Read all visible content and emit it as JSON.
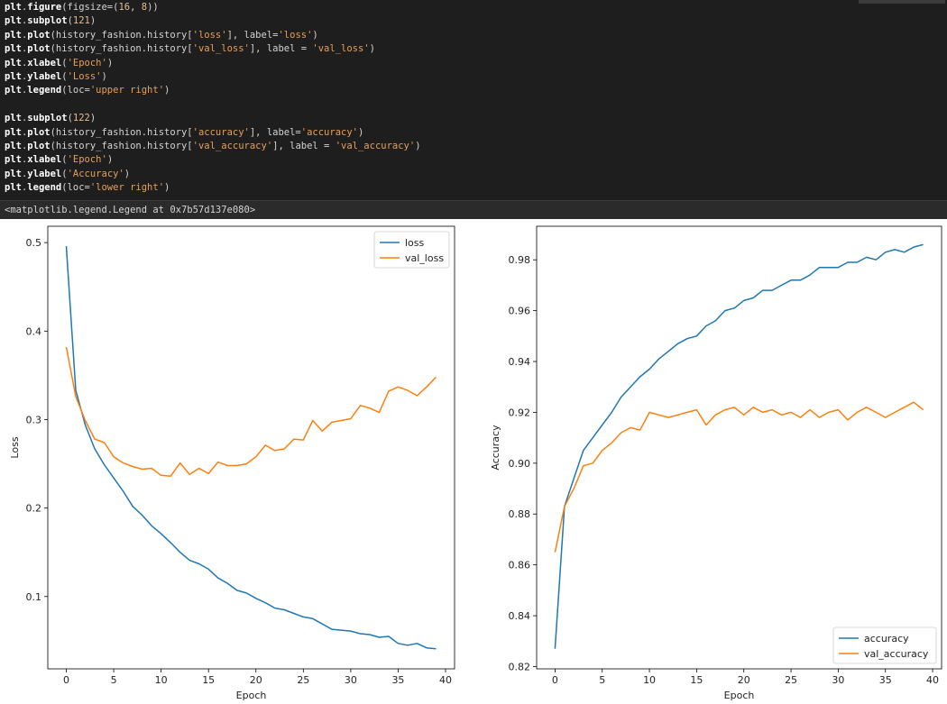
{
  "code_cell": {
    "lines": [
      [
        [
          "n",
          "plt"
        ],
        [
          "p",
          "."
        ],
        [
          "n",
          "figure"
        ],
        [
          "p",
          "(figsize=("
        ],
        [
          "num",
          "16"
        ],
        [
          "p",
          ", "
        ],
        [
          "num",
          "8"
        ],
        [
          "p",
          "))"
        ]
      ],
      [
        [
          "n",
          "plt"
        ],
        [
          "p",
          "."
        ],
        [
          "n",
          "subplot"
        ],
        [
          "p",
          "("
        ],
        [
          "num",
          "121"
        ],
        [
          "p",
          ")"
        ]
      ],
      [
        [
          "n",
          "plt"
        ],
        [
          "p",
          "."
        ],
        [
          "n",
          "plot"
        ],
        [
          "p",
          "(history_fashion.history["
        ],
        [
          "s",
          "'loss'"
        ],
        [
          "p",
          "], label="
        ],
        [
          "s",
          "'loss'"
        ],
        [
          "p",
          ")"
        ]
      ],
      [
        [
          "n",
          "plt"
        ],
        [
          "p",
          "."
        ],
        [
          "n",
          "plot"
        ],
        [
          "p",
          "(history_fashion.history["
        ],
        [
          "s",
          "'val_loss'"
        ],
        [
          "p",
          "], label = "
        ],
        [
          "s",
          "'val_loss'"
        ],
        [
          "p",
          ")"
        ]
      ],
      [
        [
          "n",
          "plt"
        ],
        [
          "p",
          "."
        ],
        [
          "n",
          "xlabel"
        ],
        [
          "p",
          "("
        ],
        [
          "s",
          "'Epoch'"
        ],
        [
          "p",
          ")"
        ]
      ],
      [
        [
          "n",
          "plt"
        ],
        [
          "p",
          "."
        ],
        [
          "n",
          "ylabel"
        ],
        [
          "p",
          "("
        ],
        [
          "s",
          "'Loss'"
        ],
        [
          "p",
          ")"
        ]
      ],
      [
        [
          "n",
          "plt"
        ],
        [
          "p",
          "."
        ],
        [
          "n",
          "legend"
        ],
        [
          "p",
          "(loc="
        ],
        [
          "s",
          "'upper right'"
        ],
        [
          "p",
          ")"
        ]
      ],
      [],
      [
        [
          "n",
          "plt"
        ],
        [
          "p",
          "."
        ],
        [
          "n",
          "subplot"
        ],
        [
          "p",
          "("
        ],
        [
          "num",
          "122"
        ],
        [
          "p",
          ")"
        ]
      ],
      [
        [
          "n",
          "plt"
        ],
        [
          "p",
          "."
        ],
        [
          "n",
          "plot"
        ],
        [
          "p",
          "(history_fashion.history["
        ],
        [
          "s",
          "'accuracy'"
        ],
        [
          "p",
          "], label="
        ],
        [
          "s",
          "'accuracy'"
        ],
        [
          "p",
          ")"
        ]
      ],
      [
        [
          "n",
          "plt"
        ],
        [
          "p",
          "."
        ],
        [
          "n",
          "plot"
        ],
        [
          "p",
          "(history_fashion.history["
        ],
        [
          "s",
          "'val_accuracy'"
        ],
        [
          "p",
          "], label = "
        ],
        [
          "s",
          "'val_accuracy'"
        ],
        [
          "p",
          ")"
        ]
      ],
      [
        [
          "n",
          "plt"
        ],
        [
          "p",
          "."
        ],
        [
          "n",
          "xlabel"
        ],
        [
          "p",
          "("
        ],
        [
          "s",
          "'Epoch'"
        ],
        [
          "p",
          ")"
        ]
      ],
      [
        [
          "n",
          "plt"
        ],
        [
          "p",
          "."
        ],
        [
          "n",
          "ylabel"
        ],
        [
          "p",
          "("
        ],
        [
          "s",
          "'Accuracy'"
        ],
        [
          "p",
          ")"
        ]
      ],
      [
        [
          "n",
          "plt"
        ],
        [
          "p",
          "."
        ],
        [
          "n",
          "legend"
        ],
        [
          "p",
          "(loc="
        ],
        [
          "s",
          "'lower right'"
        ],
        [
          "p",
          ")"
        ]
      ]
    ]
  },
  "output": {
    "text": "<matplotlib.legend.Legend at 0x7b57d137e080>"
  },
  "colors": {
    "series_1": "#1f77b4",
    "series_2": "#ff7f0e",
    "code_bg": "#1e1e1e",
    "output_bg": "#2b2b2b"
  },
  "chart_data": [
    {
      "type": "line",
      "title": "",
      "xlabel": "Epoch",
      "ylabel": "Loss",
      "xlim": [
        -1.95,
        40.95
      ],
      "ylim": [
        0.0183,
        0.5185
      ],
      "xticks": [
        0,
        5,
        10,
        15,
        20,
        25,
        30,
        35,
        40
      ],
      "yticks": [
        0.1,
        0.2,
        0.3,
        0.4,
        0.5
      ],
      "legend": "upper right",
      "grid": false,
      "x": [
        0,
        1,
        2,
        3,
        4,
        5,
        6,
        7,
        8,
        9,
        10,
        11,
        12,
        13,
        14,
        15,
        16,
        17,
        18,
        19,
        20,
        21,
        22,
        23,
        24,
        25,
        26,
        27,
        28,
        29,
        30,
        31,
        32,
        33,
        34,
        35,
        36,
        37,
        38,
        39
      ],
      "series": [
        {
          "name": "loss",
          "color": "#1f77b4",
          "values": [
            0.496,
            0.333,
            0.294,
            0.267,
            0.249,
            0.234,
            0.219,
            0.202,
            0.192,
            0.18,
            0.171,
            0.161,
            0.15,
            0.141,
            0.137,
            0.131,
            0.121,
            0.115,
            0.107,
            0.104,
            0.098,
            0.093,
            0.087,
            0.085,
            0.081,
            0.077,
            0.075,
            0.069,
            0.063,
            0.062,
            0.061,
            0.058,
            0.057,
            0.054,
            0.055,
            0.047,
            0.045,
            0.047,
            0.042,
            0.041
          ]
        },
        {
          "name": "val_loss",
          "color": "#ff7f0e",
          "values": [
            0.382,
            0.326,
            0.299,
            0.278,
            0.274,
            0.258,
            0.251,
            0.247,
            0.244,
            0.245,
            0.237,
            0.236,
            0.251,
            0.238,
            0.245,
            0.239,
            0.252,
            0.248,
            0.248,
            0.25,
            0.258,
            0.271,
            0.265,
            0.267,
            0.278,
            0.277,
            0.299,
            0.287,
            0.297,
            0.299,
            0.301,
            0.316,
            0.313,
            0.308,
            0.332,
            0.337,
            0.333,
            0.327,
            0.337,
            0.348
          ]
        }
      ]
    },
    {
      "type": "line",
      "title": "",
      "xlabel": "Epoch",
      "ylabel": "Accuracy",
      "xlim": [
        -1.95,
        40.95
      ],
      "ylim": [
        0.8191,
        0.9932
      ],
      "xticks": [
        0,
        5,
        10,
        15,
        20,
        25,
        30,
        35,
        40
      ],
      "yticks": [
        0.82,
        0.84,
        0.86,
        0.88,
        0.9,
        0.92,
        0.94,
        0.96,
        0.98
      ],
      "legend": "lower right",
      "grid": false,
      "x": [
        0,
        1,
        2,
        3,
        4,
        5,
        6,
        7,
        8,
        9,
        10,
        11,
        12,
        13,
        14,
        15,
        16,
        17,
        18,
        19,
        20,
        21,
        22,
        23,
        24,
        25,
        26,
        27,
        28,
        29,
        30,
        31,
        32,
        33,
        34,
        35,
        36,
        37,
        38,
        39
      ],
      "series": [
        {
          "name": "accuracy",
          "color": "#1f77b4",
          "values": [
            0.827,
            0.883,
            0.894,
            0.905,
            0.91,
            0.915,
            0.92,
            0.926,
            0.93,
            0.934,
            0.937,
            0.941,
            0.944,
            0.947,
            0.949,
            0.95,
            0.954,
            0.956,
            0.96,
            0.961,
            0.964,
            0.965,
            0.968,
            0.968,
            0.97,
            0.972,
            0.972,
            0.974,
            0.977,
            0.977,
            0.977,
            0.979,
            0.979,
            0.981,
            0.98,
            0.983,
            0.984,
            0.983,
            0.985,
            0.986
          ]
        },
        {
          "name": "val_accuracy",
          "color": "#ff7f0e",
          "values": [
            0.865,
            0.883,
            0.89,
            0.899,
            0.9,
            0.905,
            0.908,
            0.912,
            0.914,
            0.913,
            0.92,
            0.919,
            0.918,
            0.919,
            0.92,
            0.921,
            0.915,
            0.919,
            0.921,
            0.922,
            0.919,
            0.922,
            0.92,
            0.921,
            0.919,
            0.92,
            0.918,
            0.921,
            0.918,
            0.92,
            0.921,
            0.917,
            0.92,
            0.922,
            0.92,
            0.918,
            0.92,
            0.922,
            0.924,
            0.921
          ]
        }
      ]
    }
  ]
}
